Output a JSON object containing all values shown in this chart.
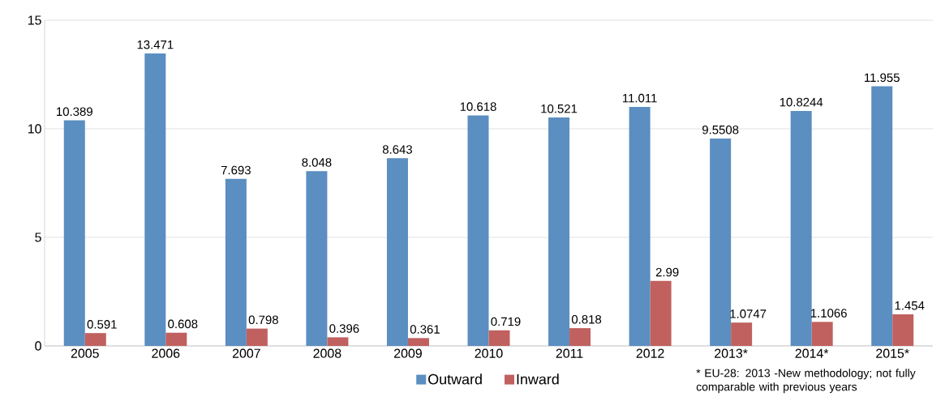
{
  "chart_data": {
    "type": "bar",
    "categories": [
      "2005",
      "2006",
      "2007",
      "2008",
      "2009",
      "2010",
      "2011",
      "2012",
      "2013*",
      "2014*",
      "2015*"
    ],
    "series": [
      {
        "name": "Outward",
        "color": "#5b8ec1",
        "values": [
          10.389,
          13.471,
          7.693,
          8.048,
          8.643,
          10.618,
          10.521,
          11.011,
          9.5508,
          10.8244,
          11.955
        ],
        "value_labels": [
          "10.389",
          "13.471",
          "7.693",
          "8.048",
          "8.643",
          "10.618",
          "10.521",
          "11.011",
          "9.5508",
          "10.8244",
          "11.955"
        ]
      },
      {
        "name": "Inward",
        "color": "#c0615f",
        "values": [
          0.591,
          0.608,
          0.798,
          0.396,
          0.361,
          0.719,
          0.818,
          2.99,
          1.0747,
          1.1066,
          1.454
        ],
        "value_labels": [
          "0.591",
          "0.608",
          "0.798",
          "0.396",
          "0.361",
          "0.719",
          "0.818",
          "2.99",
          "1.0747",
          "1.1066",
          "1.454"
        ]
      }
    ],
    "ylim": [
      0,
      15
    ],
    "yticks": [
      0,
      5,
      10,
      15
    ],
    "grid": "y",
    "legend": "bottom",
    "annotations": [
      "* EU-28: 2013 -New methodology; not fully comparable with previous years"
    ]
  }
}
